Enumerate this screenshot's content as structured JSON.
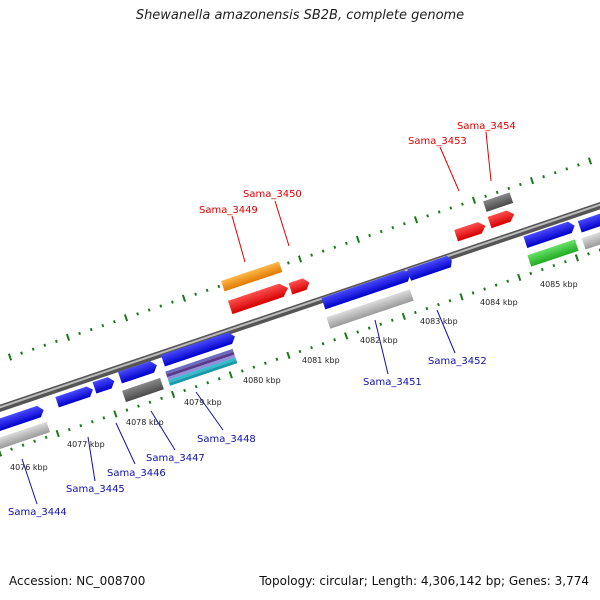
{
  "title": "Shewanella amazonensis SB2B, complete genome",
  "footer": {
    "accession": "Accession: NC_008700",
    "summary": "Topology: circular; Length: 4,306,142 bp; Genes: 3,774"
  },
  "colors": {
    "forward_gene": "#0000e6",
    "reverse_gene": "#ff0000",
    "pseudo_gray": "#666666",
    "light_gray": "#b0b0b0",
    "orange": "#f59a13",
    "green": "#33cc33",
    "teal": "#33bbcc",
    "tick_green": "#1a7a1a",
    "label_red": "#e00000",
    "label_blue": "#1010b0"
  },
  "kbp_labels": [
    "4076 kbp",
    "4077 kbp",
    "4078 kbp",
    "4079 kbp",
    "4080 kbp",
    "4081 kbp",
    "4082 kbp",
    "4083 kbp",
    "4084 kbp",
    "4085 kbp"
  ],
  "genes_top": [
    "Sama_3449",
    "Sama_3450",
    "Sama_3453",
    "Sama_3454"
  ],
  "genes_bottom": [
    "Sama_3444",
    "Sama_3445",
    "Sama_3446",
    "Sama_3447",
    "Sama_3448",
    "Sama_3451",
    "Sama_3452"
  ]
}
